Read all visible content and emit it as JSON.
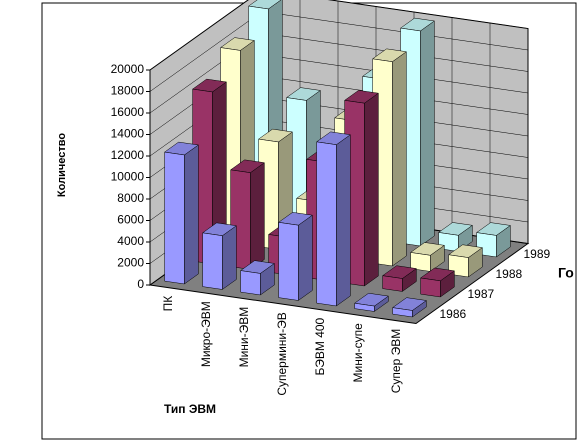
{
  "chart_data": {
    "type": "bar3d",
    "y_label": "Количество",
    "x_label": "Тип ЭВМ",
    "z_label": "Го",
    "categories": [
      "ПК",
      "Микро-ЭВМ",
      "Мини-ЭВМ",
      "Супермини-ЭВ",
      "БЭВМ 400",
      "Мини-супе",
      "Супер ЭВМ"
    ],
    "series": [
      {
        "name": "1986",
        "color": "#9999ff",
        "values": [
          12000,
          5000,
          2000,
          7000,
          15000,
          500,
          600
        ]
      },
      {
        "name": "1987",
        "color": "#993366",
        "values": [
          16000,
          9000,
          3500,
          11000,
          17000,
          1200,
          1500
        ]
      },
      {
        "name": "1988",
        "color": "#ffffcc",
        "values": [
          18000,
          10000,
          5000,
          13000,
          19000,
          1500,
          1800
        ]
      },
      {
        "name": "1989",
        "color": "#ccffff",
        "values": [
          20000,
          12000,
          6000,
          15000,
          20000,
          1500,
          2000
        ]
      }
    ],
    "ylim": [
      0,
      20000
    ],
    "yticks": [
      0,
      2000,
      4000,
      6000,
      8000,
      10000,
      12000,
      14000,
      16000,
      18000,
      20000
    ],
    "grid": true
  }
}
